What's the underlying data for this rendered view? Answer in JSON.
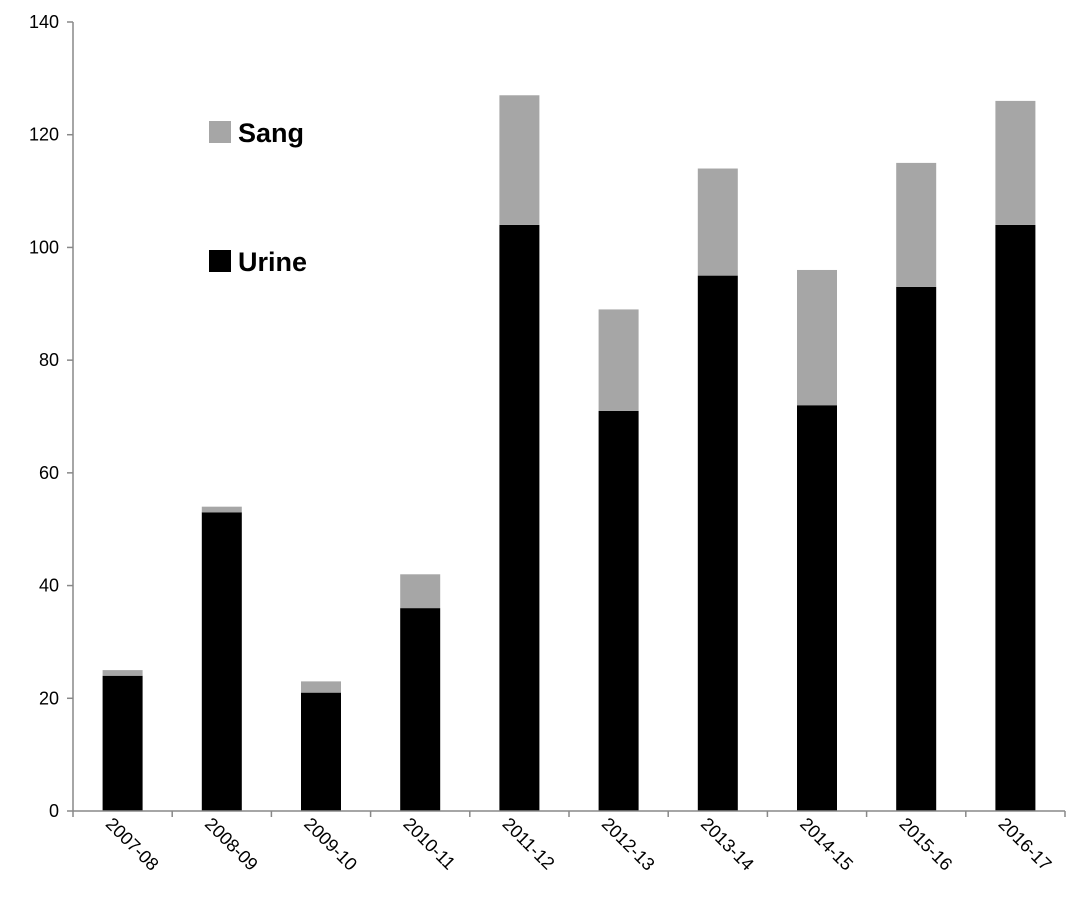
{
  "chart_data": {
    "type": "bar",
    "stacked": true,
    "categories": [
      "2007-08",
      "2008-09",
      "2009-10",
      "2010-11",
      "2011-12",
      "2012-13",
      "2013-14",
      "2014-15",
      "2015-16",
      "2016-17"
    ],
    "series": [
      {
        "name": "Urine",
        "color": "#000000",
        "values": [
          24,
          53,
          21,
          36,
          104,
          71,
          95,
          72,
          93,
          104
        ]
      },
      {
        "name": "Sang",
        "color": "#a6a6a6",
        "values": [
          1,
          1,
          2,
          6,
          23,
          18,
          19,
          24,
          22,
          22
        ]
      }
    ],
    "ylim": [
      0,
      140
    ],
    "yticks": [
      0,
      20,
      40,
      60,
      80,
      100,
      120,
      140
    ],
    "title": "",
    "xlabel": "",
    "ylabel": "",
    "grid": false,
    "legend": {
      "placement": "top-left",
      "order": [
        "Sang",
        "Urine"
      ]
    }
  }
}
